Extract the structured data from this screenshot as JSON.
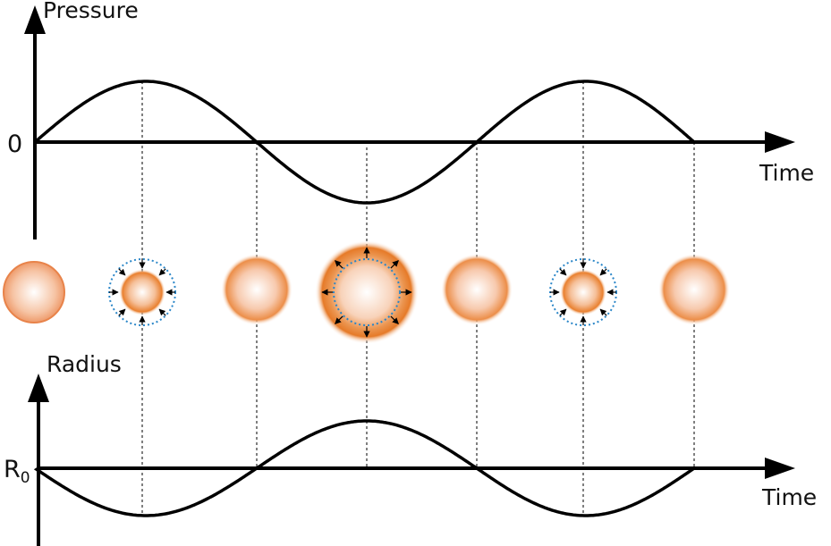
{
  "top_plot": {
    "y_label": "Pressure",
    "x_label": "Time",
    "zero_label": "0"
  },
  "bottom_plot": {
    "y_label": "Radius",
    "x_label": "Time",
    "zero_label_main": "R",
    "zero_label_sub": "0"
  },
  "colors": {
    "bubble_orange": "#e87f2e",
    "bubble_center": "#ffffff",
    "dotted_circle": "#2a86c8",
    "axis": "#000000"
  },
  "bubbles": [
    {
      "state": "rest",
      "arrows": "none"
    },
    {
      "state": "compressed",
      "arrows": "inward"
    },
    {
      "state": "rest",
      "arrows": "none"
    },
    {
      "state": "expanded",
      "arrows": "outward"
    },
    {
      "state": "rest",
      "arrows": "none"
    },
    {
      "state": "compressed",
      "arrows": "inward"
    },
    {
      "state": "rest",
      "arrows": "none"
    }
  ]
}
